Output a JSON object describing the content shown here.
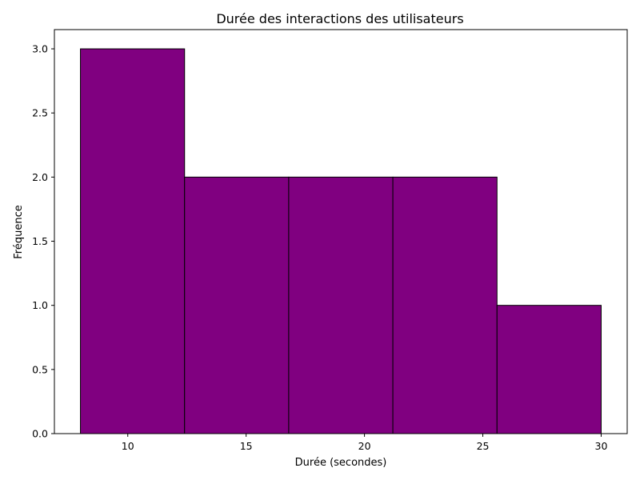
{
  "chart_data": {
    "type": "bar",
    "title": "Durée des interactions des utilisateurs",
    "xlabel": "Durée (secondes)",
    "ylabel": "Fréquence",
    "bins": [
      {
        "start": 8.0,
        "end": 12.4,
        "count": 3
      },
      {
        "start": 12.4,
        "end": 16.8,
        "count": 2
      },
      {
        "start": 16.8,
        "end": 21.2,
        "count": 2
      },
      {
        "start": 21.2,
        "end": 25.6,
        "count": 2
      },
      {
        "start": 25.6,
        "end": 30.0,
        "count": 1
      }
    ],
    "xlim": [
      6.9,
      31.1
    ],
    "ylim": [
      0,
      3.15
    ],
    "xticks": [
      10,
      15,
      20,
      25,
      30
    ],
    "yticks": [
      0.0,
      0.5,
      1.0,
      1.5,
      2.0,
      2.5,
      3.0
    ],
    "xtick_labels": [
      "10",
      "15",
      "20",
      "25",
      "30"
    ],
    "ytick_labels": [
      "0.0",
      "0.5",
      "1.0",
      "1.5",
      "2.0",
      "2.5",
      "3.0"
    ],
    "grid": false,
    "bar_color": "#800080",
    "edge_color": "#000000"
  }
}
